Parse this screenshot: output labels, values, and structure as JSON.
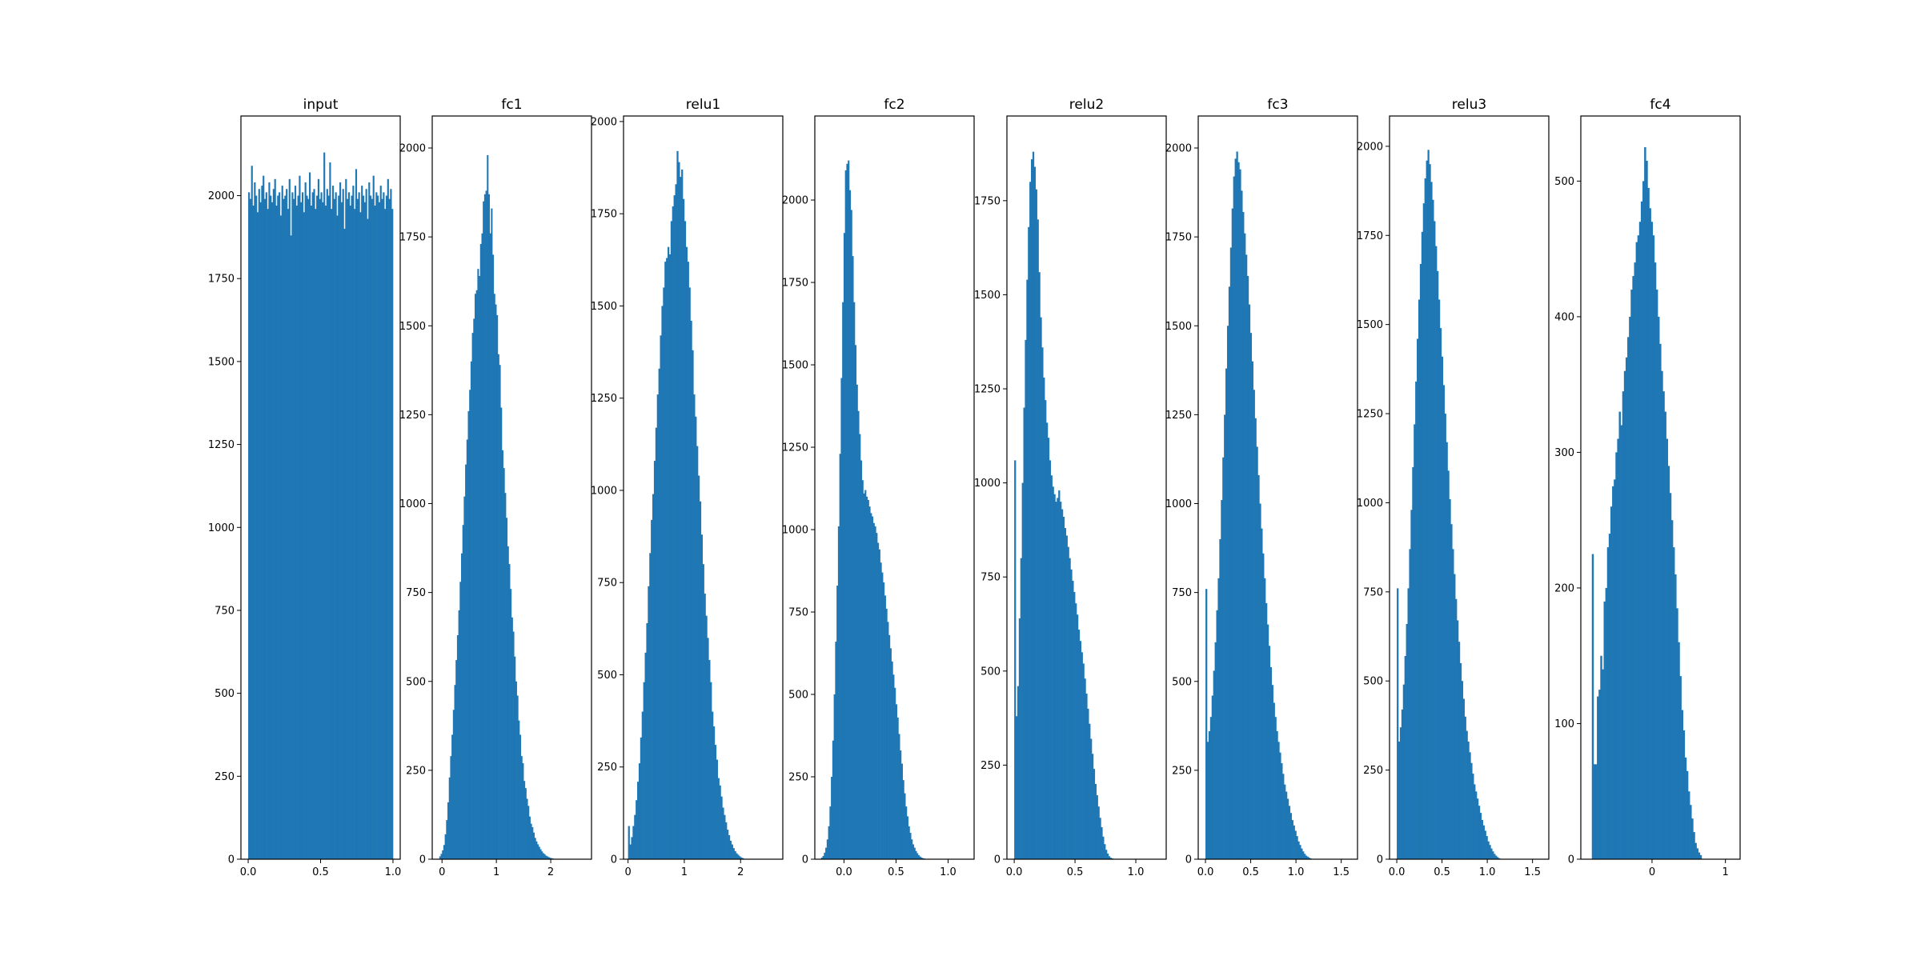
{
  "figure": {
    "bar_color": "#1f77b4",
    "frame_color": "#000000",
    "background": "#ffffff"
  },
  "chart_data": [
    {
      "type": "bar",
      "title": "input",
      "xlabel": "",
      "ylabel": "",
      "xlim": [
        -0.05,
        1.05
      ],
      "ylim": [
        0,
        2240
      ],
      "xticks": [
        0.0,
        0.5,
        1.0
      ],
      "xtick_labels": [
        "0.0",
        "0.5",
        "1.0"
      ],
      "yticks": [
        0,
        250,
        500,
        750,
        1000,
        1250,
        1500,
        1750,
        2000
      ],
      "ytick_labels": [
        "0",
        "250",
        "500",
        "750",
        "1000",
        "1250",
        "1500",
        "1750",
        "2000"
      ],
      "bin_start": 0.0,
      "bin_width": 0.01,
      "values": [
        2010,
        1990,
        2090,
        1970,
        2040,
        2000,
        1950,
        2020,
        1980,
        2030,
        2060,
        1990,
        2010,
        1960,
        2040,
        2000,
        1980,
        2020,
        2050,
        1970,
        2000,
        2010,
        1940,
        2030,
        1990,
        2000,
        2020,
        1960,
        2050,
        1880,
        2010,
        1990,
        2030,
        1970,
        2000,
        2060,
        1980,
        2010,
        1950,
        2040,
        2000,
        1990,
        2070,
        1970,
        2010,
        2020,
        1960,
        2000,
        2050,
        1990,
        2010,
        1980,
        2130,
        1970,
        2020,
        2000,
        2100,
        1960,
        2030,
        1990,
        2010,
        1940,
        2000,
        2040,
        1980,
        2020,
        1900,
        2050,
        1990,
        2010,
        1970,
        2000,
        2030,
        1960,
        2080,
        1990,
        2010,
        1950,
        2030,
        2000,
        1980,
        2020,
        1930,
        2040,
        2000,
        1990,
        2060,
        1970,
        2010,
        2000,
        1980,
        2030,
        1990,
        2010,
        1960,
        2000,
        2050,
        1990,
        2020,
        1960
      ]
    },
    {
      "type": "bar",
      "title": "fc1",
      "xlabel": "",
      "ylabel": "",
      "xlim": [
        -0.18,
        2.75
      ],
      "ylim": [
        0,
        2090
      ],
      "xticks": [
        0,
        1,
        2
      ],
      "xtick_labels": [
        "0",
        "1",
        "2"
      ],
      "yticks": [
        0,
        250,
        500,
        750,
        1000,
        1250,
        1500,
        1750,
        2000
      ],
      "ytick_labels": [
        "0",
        "250",
        "500",
        "750",
        "1000",
        "1250",
        "1500",
        "1750",
        "2000"
      ],
      "bin_start": -0.05,
      "bin_width": 0.025,
      "values": [
        8,
        15,
        25,
        40,
        70,
        110,
        160,
        230,
        290,
        350,
        420,
        490,
        560,
        630,
        700,
        780,
        860,
        940,
        1020,
        1110,
        1180,
        1260,
        1320,
        1400,
        1480,
        1520,
        1590,
        1600,
        1660,
        1640,
        1730,
        1760,
        1850,
        1870,
        1880,
        1980,
        1870,
        1760,
        1830,
        1700,
        1590,
        1560,
        1530,
        1420,
        1390,
        1270,
        1150,
        1100,
        1030,
        960,
        880,
        830,
        760,
        680,
        640,
        570,
        500,
        460,
        390,
        350,
        290,
        270,
        220,
        200,
        170,
        150,
        120,
        100,
        90,
        75,
        60,
        50,
        42,
        35,
        28,
        22,
        17,
        14,
        10,
        8,
        6,
        4,
        3,
        2
      ]
    },
    {
      "type": "bar",
      "title": "relu1",
      "xlabel": "",
      "ylabel": "",
      "xlim": [
        -0.08,
        2.75
      ],
      "ylim": [
        0,
        2015
      ],
      "xticks": [
        0,
        1,
        2
      ],
      "xtick_labels": [
        "0",
        "1",
        "2"
      ],
      "yticks": [
        0,
        250,
        500,
        750,
        1000,
        1250,
        1500,
        1750,
        2000
      ],
      "ytick_labels": [
        "0",
        "250",
        "500",
        "750",
        "1000",
        "1250",
        "1500",
        "1750",
        "2000"
      ],
      "bin_start": 0.0,
      "bin_width": 0.027,
      "values": [
        90,
        40,
        60,
        90,
        120,
        160,
        210,
        260,
        330,
        400,
        480,
        560,
        640,
        740,
        830,
        920,
        990,
        1080,
        1170,
        1260,
        1330,
        1420,
        1500,
        1550,
        1620,
        1630,
        1660,
        1640,
        1730,
        1770,
        1800,
        1830,
        1920,
        1890,
        1850,
        1870,
        1790,
        1730,
        1660,
        1620,
        1550,
        1460,
        1380,
        1260,
        1200,
        1120,
        1040,
        970,
        880,
        800,
        720,
        660,
        600,
        540,
        480,
        400,
        360,
        310,
        270,
        220,
        200,
        170,
        140,
        120,
        100,
        80,
        65,
        50,
        40,
        30,
        22,
        16,
        12,
        8,
        5,
        3
      ]
    },
    {
      "type": "bar",
      "title": "fc2",
      "xlabel": "",
      "ylabel": "",
      "xlim": [
        -0.28,
        1.25
      ],
      "ylim": [
        0,
        2255
      ],
      "xticks": [
        0.0,
        0.5,
        1.0
      ],
      "xtick_labels": [
        "0.0",
        "0.5",
        "1.0"
      ],
      "yticks": [
        0,
        250,
        500,
        750,
        1000,
        1250,
        1500,
        1750,
        2000
      ],
      "ytick_labels": [
        "0",
        "250",
        "500",
        "750",
        "1000",
        "1250",
        "1500",
        "1750",
        "2000"
      ],
      "bin_start": -0.22,
      "bin_width": 0.0135,
      "values": [
        5,
        10,
        20,
        35,
        60,
        100,
        160,
        250,
        360,
        500,
        660,
        830,
        1010,
        1230,
        1460,
        1690,
        1900,
        2090,
        2110,
        2120,
        2030,
        1970,
        1830,
        1690,
        1560,
        1440,
        1360,
        1290,
        1210,
        1150,
        1110,
        1120,
        1100,
        1090,
        1070,
        1050,
        1040,
        1020,
        1010,
        990,
        960,
        940,
        900,
        870,
        840,
        800,
        760,
        720,
        680,
        640,
        600,
        560,
        520,
        470,
        430,
        380,
        330,
        290,
        240,
        200,
        160,
        130,
        100,
        80,
        60,
        45,
        35,
        25,
        18,
        12,
        8,
        5,
        3,
        2,
        1
      ]
    },
    {
      "type": "bar",
      "title": "relu2",
      "xlabel": "",
      "ylabel": "",
      "xlim": [
        -0.06,
        1.25
      ],
      "ylim": [
        0,
        1975
      ],
      "xticks": [
        0.0,
        0.5,
        1.0
      ],
      "xtick_labels": [
        "0.0",
        "0.5",
        "1.0"
      ],
      "yticks": [
        0,
        250,
        500,
        750,
        1000,
        1250,
        1500,
        1750
      ],
      "ytick_labels": [
        "0",
        "250",
        "500",
        "750",
        "1000",
        "1250",
        "1500",
        "1750"
      ],
      "bin_start": 0.0,
      "bin_width": 0.0125,
      "values": [
        1060,
        380,
        460,
        640,
        800,
        1000,
        1200,
        1380,
        1540,
        1680,
        1800,
        1860,
        1880,
        1840,
        1780,
        1700,
        1560,
        1440,
        1360,
        1280,
        1220,
        1160,
        1120,
        1060,
        1020,
        990,
        970,
        950,
        960,
        980,
        950,
        930,
        910,
        880,
        860,
        830,
        800,
        770,
        740,
        710,
        680,
        650,
        610,
        580,
        550,
        520,
        480,
        440,
        400,
        360,
        320,
        280,
        240,
        200,
        170,
        140,
        110,
        85,
        60,
        40,
        25,
        15,
        8,
        4,
        2
      ]
    },
    {
      "type": "bar",
      "title": "fc3",
      "xlabel": "",
      "ylabel": "",
      "xlim": [
        -0.08,
        1.68
      ],
      "ylim": [
        0,
        2090
      ],
      "xticks": [
        0.0,
        0.5,
        1.0,
        1.5
      ],
      "xtick_labels": [
        "0.0",
        "0.5",
        "1.0",
        "1.5"
      ],
      "yticks": [
        0,
        250,
        500,
        750,
        1000,
        1250,
        1500,
        1750,
        2000
      ],
      "ytick_labels": [
        "0",
        "250",
        "500",
        "750",
        "1000",
        "1250",
        "1500",
        "1750",
        "2000"
      ],
      "bin_start": 0.0,
      "bin_width": 0.017,
      "values": [
        760,
        330,
        360,
        400,
        460,
        530,
        610,
        700,
        790,
        900,
        1010,
        1130,
        1250,
        1380,
        1500,
        1610,
        1720,
        1830,
        1920,
        1970,
        1990,
        1960,
        1940,
        1880,
        1820,
        1760,
        1700,
        1640,
        1560,
        1480,
        1400,
        1320,
        1240,
        1160,
        1080,
        1000,
        930,
        860,
        790,
        720,
        660,
        600,
        540,
        490,
        440,
        400,
        360,
        330,
        300,
        270,
        240,
        210,
        190,
        170,
        150,
        130,
        110,
        95,
        80,
        65,
        50,
        40,
        30,
        22,
        15,
        10,
        7,
        4,
        2
      ]
    },
    {
      "type": "bar",
      "title": "relu3",
      "xlabel": "",
      "ylabel": "",
      "xlim": [
        -0.08,
        1.68
      ],
      "ylim": [
        0,
        2085
      ],
      "xticks": [
        0.0,
        0.5,
        1.0,
        1.5
      ],
      "xtick_labels": [
        "0.0",
        "0.5",
        "1.0",
        "1.5"
      ],
      "yticks": [
        0,
        250,
        500,
        750,
        1000,
        1250,
        1500,
        1750,
        2000
      ],
      "ytick_labels": [
        "0",
        "250",
        "500",
        "750",
        "1000",
        "1250",
        "1500",
        "1750",
        "2000"
      ],
      "bin_start": 0.0,
      "bin_width": 0.017,
      "values": [
        760,
        330,
        370,
        420,
        490,
        570,
        660,
        760,
        870,
        980,
        1100,
        1220,
        1340,
        1460,
        1570,
        1670,
        1760,
        1840,
        1910,
        1960,
        1990,
        1950,
        1900,
        1850,
        1790,
        1720,
        1650,
        1570,
        1490,
        1410,
        1330,
        1250,
        1170,
        1090,
        1010,
        940,
        870,
        800,
        730,
        670,
        610,
        550,
        500,
        450,
        400,
        360,
        330,
        300,
        270,
        240,
        210,
        190,
        170,
        150,
        130,
        110,
        95,
        80,
        65,
        50,
        40,
        30,
        22,
        15,
        10,
        6,
        3
      ]
    },
    {
      "type": "bar",
      "title": "fc4",
      "xlabel": "",
      "ylabel": "",
      "xlim": [
        -0.97,
        1.2
      ],
      "ylim": [
        0,
        548
      ],
      "xticks": [
        0,
        1
      ],
      "xtick_labels": [
        "0",
        "1"
      ],
      "yticks": [
        0,
        100,
        200,
        300,
        400,
        500
      ],
      "ytick_labels": [
        "0",
        "100",
        "200",
        "300",
        "400",
        "500"
      ],
      "bin_start": -0.82,
      "bin_width": 0.023,
      "values": [
        225,
        70,
        70,
        120,
        125,
        150,
        140,
        190,
        200,
        230,
        240,
        260,
        275,
        280,
        300,
        310,
        330,
        320,
        345,
        360,
        370,
        385,
        400,
        420,
        430,
        440,
        455,
        460,
        470,
        485,
        500,
        525,
        515,
        495,
        480,
        470,
        460,
        440,
        420,
        400,
        380,
        360,
        345,
        330,
        310,
        290,
        270,
        250,
        230,
        210,
        185,
        160,
        135,
        110,
        95,
        75,
        65,
        50,
        40,
        30,
        20,
        12,
        8,
        5,
        3
      ]
    }
  ]
}
